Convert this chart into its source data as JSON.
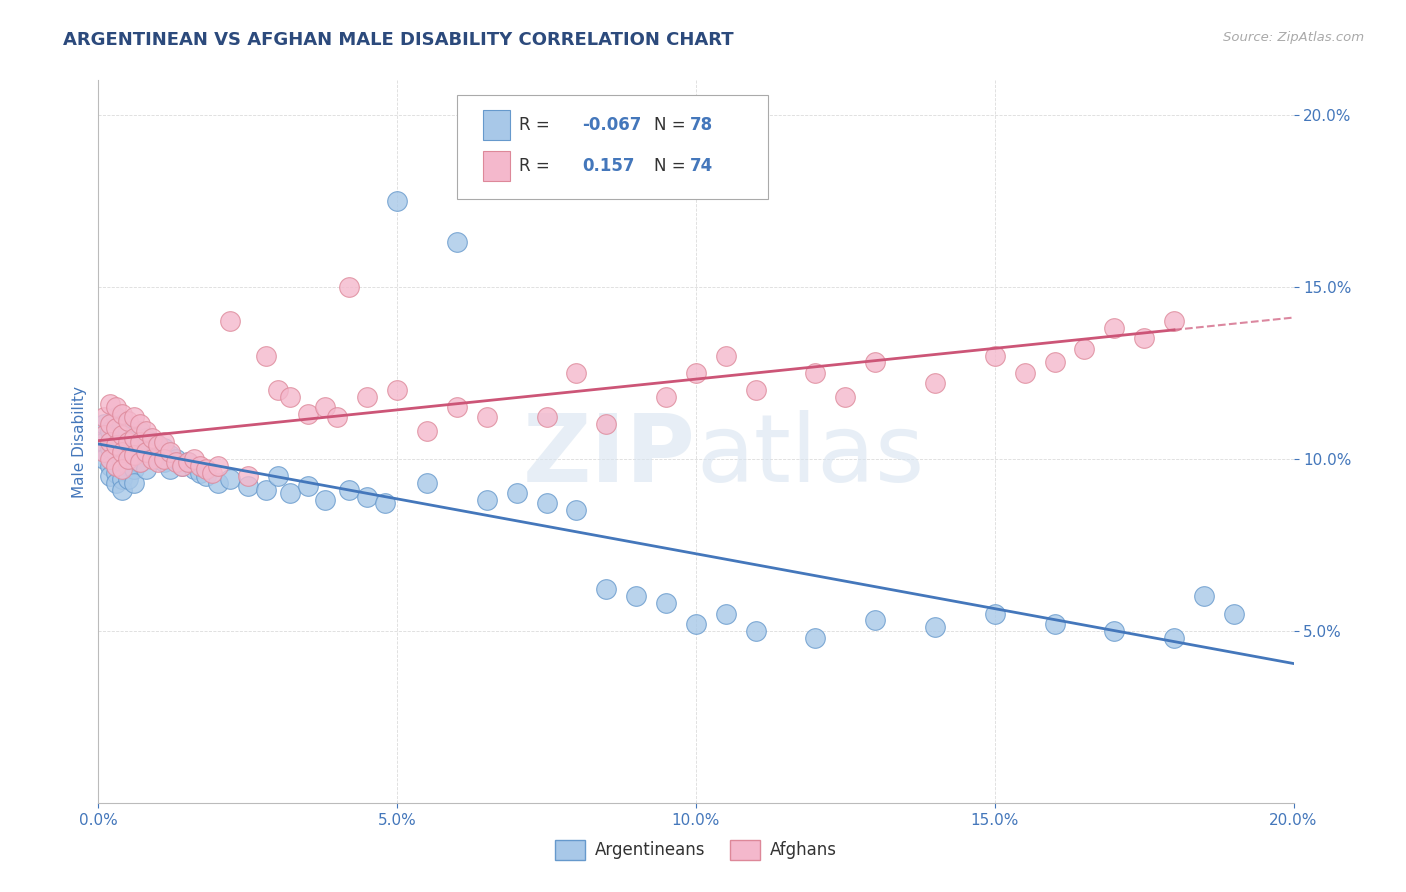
{
  "title": "ARGENTINEAN VS AFGHAN MALE DISABILITY CORRELATION CHART",
  "source": "Source: ZipAtlas.com",
  "ylabel": "Male Disability",
  "xlim": [
    0.0,
    0.2
  ],
  "ylim": [
    0.0,
    0.21
  ],
  "x_ticks": [
    0.0,
    0.05,
    0.1,
    0.15,
    0.2
  ],
  "x_tick_labels": [
    "0.0%",
    "5.0%",
    "10.0%",
    "15.0%",
    "20.0%"
  ],
  "y_ticks": [
    0.05,
    0.1,
    0.15,
    0.2
  ],
  "y_tick_labels": [
    "5.0%",
    "10.0%",
    "15.0%",
    "20.0%"
  ],
  "argentinean_color": "#a8c8e8",
  "afghan_color": "#f4b8cc",
  "argentinean_edge": "#6699cc",
  "afghan_edge": "#dd8899",
  "trend_arg_color": "#4477bb",
  "trend_afg_color": "#cc5577",
  "tick_color": "#4477bb",
  "R_arg": -0.067,
  "N_arg": 78,
  "R_afg": 0.157,
  "N_afg": 74,
  "watermark": "ZIPatlas",
  "background_color": "#ffffff",
  "grid_color": "#cccccc",
  "title_color": "#2c4a7c",
  "source_color": "#aaaaaa",
  "arg_x": [
    0.001,
    0.001,
    0.001,
    0.002,
    0.002,
    0.002,
    0.002,
    0.003,
    0.003,
    0.003,
    0.003,
    0.003,
    0.004,
    0.004,
    0.004,
    0.004,
    0.004,
    0.005,
    0.005,
    0.005,
    0.005,
    0.006,
    0.006,
    0.006,
    0.006,
    0.007,
    0.007,
    0.007,
    0.008,
    0.008,
    0.008,
    0.009,
    0.009,
    0.01,
    0.01,
    0.011,
    0.011,
    0.012,
    0.012,
    0.013,
    0.014,
    0.015,
    0.016,
    0.017,
    0.018,
    0.02,
    0.022,
    0.025,
    0.028,
    0.03,
    0.032,
    0.035,
    0.038,
    0.042,
    0.045,
    0.048,
    0.05,
    0.055,
    0.06,
    0.065,
    0.07,
    0.075,
    0.08,
    0.085,
    0.09,
    0.095,
    0.1,
    0.105,
    0.11,
    0.12,
    0.13,
    0.14,
    0.15,
    0.16,
    0.17,
    0.18,
    0.185,
    0.19
  ],
  "arg_y": [
    0.11,
    0.105,
    0.1,
    0.108,
    0.103,
    0.098,
    0.095,
    0.112,
    0.107,
    0.102,
    0.096,
    0.093,
    0.11,
    0.105,
    0.099,
    0.094,
    0.091,
    0.108,
    0.103,
    0.098,
    0.094,
    0.107,
    0.102,
    0.097,
    0.093,
    0.108,
    0.104,
    0.099,
    0.106,
    0.101,
    0.097,
    0.105,
    0.101,
    0.104,
    0.1,
    0.103,
    0.099,
    0.101,
    0.097,
    0.1,
    0.098,
    0.099,
    0.097,
    0.096,
    0.095,
    0.093,
    0.094,
    0.092,
    0.091,
    0.095,
    0.09,
    0.092,
    0.088,
    0.091,
    0.089,
    0.087,
    0.175,
    0.093,
    0.163,
    0.088,
    0.09,
    0.087,
    0.085,
    0.062,
    0.06,
    0.058,
    0.052,
    0.055,
    0.05,
    0.048,
    0.053,
    0.051,
    0.055,
    0.052,
    0.05,
    0.048,
    0.06,
    0.055
  ],
  "afg_x": [
    0.001,
    0.001,
    0.001,
    0.002,
    0.002,
    0.002,
    0.002,
    0.003,
    0.003,
    0.003,
    0.003,
    0.004,
    0.004,
    0.004,
    0.004,
    0.005,
    0.005,
    0.005,
    0.006,
    0.006,
    0.006,
    0.007,
    0.007,
    0.007,
    0.008,
    0.008,
    0.009,
    0.009,
    0.01,
    0.01,
    0.011,
    0.011,
    0.012,
    0.013,
    0.014,
    0.015,
    0.016,
    0.017,
    0.018,
    0.019,
    0.02,
    0.022,
    0.025,
    0.028,
    0.03,
    0.032,
    0.035,
    0.038,
    0.04,
    0.042,
    0.045,
    0.05,
    0.055,
    0.06,
    0.065,
    0.07,
    0.075,
    0.08,
    0.085,
    0.095,
    0.1,
    0.105,
    0.11,
    0.12,
    0.125,
    0.13,
    0.14,
    0.15,
    0.155,
    0.16,
    0.165,
    0.17,
    0.175,
    0.18
  ],
  "afg_y": [
    0.112,
    0.107,
    0.102,
    0.116,
    0.11,
    0.105,
    0.1,
    0.115,
    0.109,
    0.104,
    0.098,
    0.113,
    0.107,
    0.102,
    0.097,
    0.111,
    0.105,
    0.1,
    0.112,
    0.106,
    0.101,
    0.11,
    0.105,
    0.099,
    0.108,
    0.102,
    0.106,
    0.1,
    0.104,
    0.099,
    0.105,
    0.1,
    0.102,
    0.099,
    0.098,
    0.099,
    0.1,
    0.098,
    0.097,
    0.096,
    0.098,
    0.14,
    0.095,
    0.13,
    0.12,
    0.118,
    0.113,
    0.115,
    0.112,
    0.15,
    0.118,
    0.12,
    0.108,
    0.115,
    0.112,
    0.19,
    0.112,
    0.125,
    0.11,
    0.118,
    0.125,
    0.13,
    0.12,
    0.125,
    0.118,
    0.128,
    0.122,
    0.13,
    0.125,
    0.128,
    0.132,
    0.138,
    0.135,
    0.14
  ]
}
